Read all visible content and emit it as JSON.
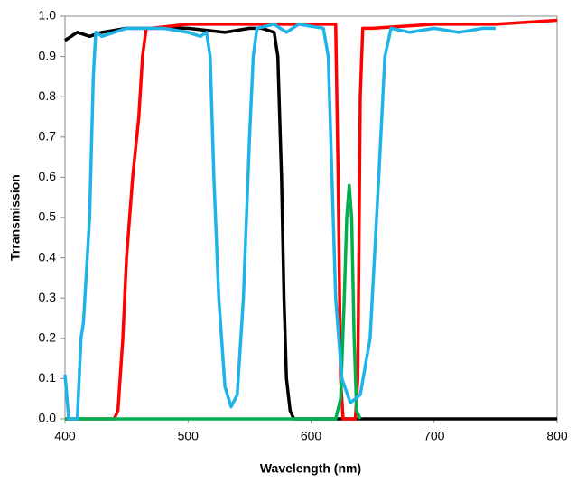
{
  "chart_data": {
    "type": "line",
    "xlabel": "Wavelength (nm)",
    "ylabel": "Trransmission",
    "xlim": [
      400,
      800
    ],
    "xticks": [
      400,
      500,
      600,
      700,
      800
    ],
    "ylim": [
      0,
      1
    ],
    "yticks": [
      {
        "value": 0,
        "label": "0.0"
      },
      {
        "value": 0.1,
        "label": "0.1"
      },
      {
        "value": 0.2,
        "label": "0.2"
      },
      {
        "value": 0.3,
        "label": "0.3"
      },
      {
        "value": 0.4,
        "label": "0.4"
      },
      {
        "value": 0.5,
        "label": "0.5"
      },
      {
        "value": 0.6,
        "label": "0.6"
      },
      {
        "value": 0.7,
        "label": "0.7"
      },
      {
        "value": 0.8,
        "label": "0.8"
      },
      {
        "value": 0.9,
        "label": "0.9"
      },
      {
        "value": 1,
        "label": "1.0"
      }
    ],
    "grid": false,
    "series": [
      {
        "color": "#000000",
        "x": [
          400,
          410,
          420,
          430,
          450,
          470,
          500,
          530,
          550,
          560,
          570,
          573,
          576,
          578,
          580,
          583,
          586,
          600,
          650,
          700,
          800
        ],
        "values": [
          0.94,
          0.96,
          0.95,
          0.96,
          0.97,
          0.97,
          0.97,
          0.96,
          0.97,
          0.97,
          0.96,
          0.9,
          0.6,
          0.3,
          0.1,
          0.02,
          0,
          0,
          0,
          0,
          0
        ]
      },
      {
        "color": "#ff0000",
        "x": [
          400,
          440,
          443,
          447,
          450,
          455,
          460,
          463,
          466,
          470,
          500,
          550,
          600,
          615,
          620,
          622,
          624,
          626,
          636,
          638,
          640,
          642,
          650,
          700,
          750,
          800
        ],
        "values": [
          0,
          0,
          0.02,
          0.2,
          0.4,
          0.6,
          0.75,
          0.9,
          0.97,
          0.97,
          0.98,
          0.98,
          0.98,
          0.98,
          0.98,
          0.6,
          0.1,
          0,
          0,
          0.1,
          0.8,
          0.97,
          0.97,
          0.98,
          0.98,
          0.99
        ]
      },
      {
        "color": "#00b050",
        "x": [
          400,
          620,
          624,
          627,
          629,
          631,
          633,
          635,
          637,
          640
        ],
        "values": [
          0,
          0,
          0.05,
          0.3,
          0.5,
          0.58,
          0.5,
          0.2,
          0.02,
          0
        ]
      },
      {
        "color": "#1fb4e8",
        "x": [
          400,
          403,
          410,
          413,
          415,
          420,
          423,
          425,
          430,
          450,
          480,
          500,
          510,
          515,
          518,
          521,
          525,
          530,
          535,
          540,
          545,
          550,
          553,
          556,
          570,
          580,
          590,
          610,
          614,
          617,
          620,
          625,
          632,
          640,
          648,
          655,
          660,
          665,
          680,
          700,
          720,
          740,
          750
        ],
        "values": [
          0.11,
          0,
          0,
          0.2,
          0.24,
          0.5,
          0.85,
          0.96,
          0.95,
          0.97,
          0.97,
          0.96,
          0.95,
          0.96,
          0.9,
          0.6,
          0.3,
          0.08,
          0.03,
          0.06,
          0.3,
          0.7,
          0.9,
          0.97,
          0.98,
          0.96,
          0.98,
          0.97,
          0.9,
          0.6,
          0.3,
          0.1,
          0.04,
          0.06,
          0.2,
          0.6,
          0.9,
          0.97,
          0.96,
          0.97,
          0.96,
          0.97,
          0.97
        ]
      }
    ]
  }
}
